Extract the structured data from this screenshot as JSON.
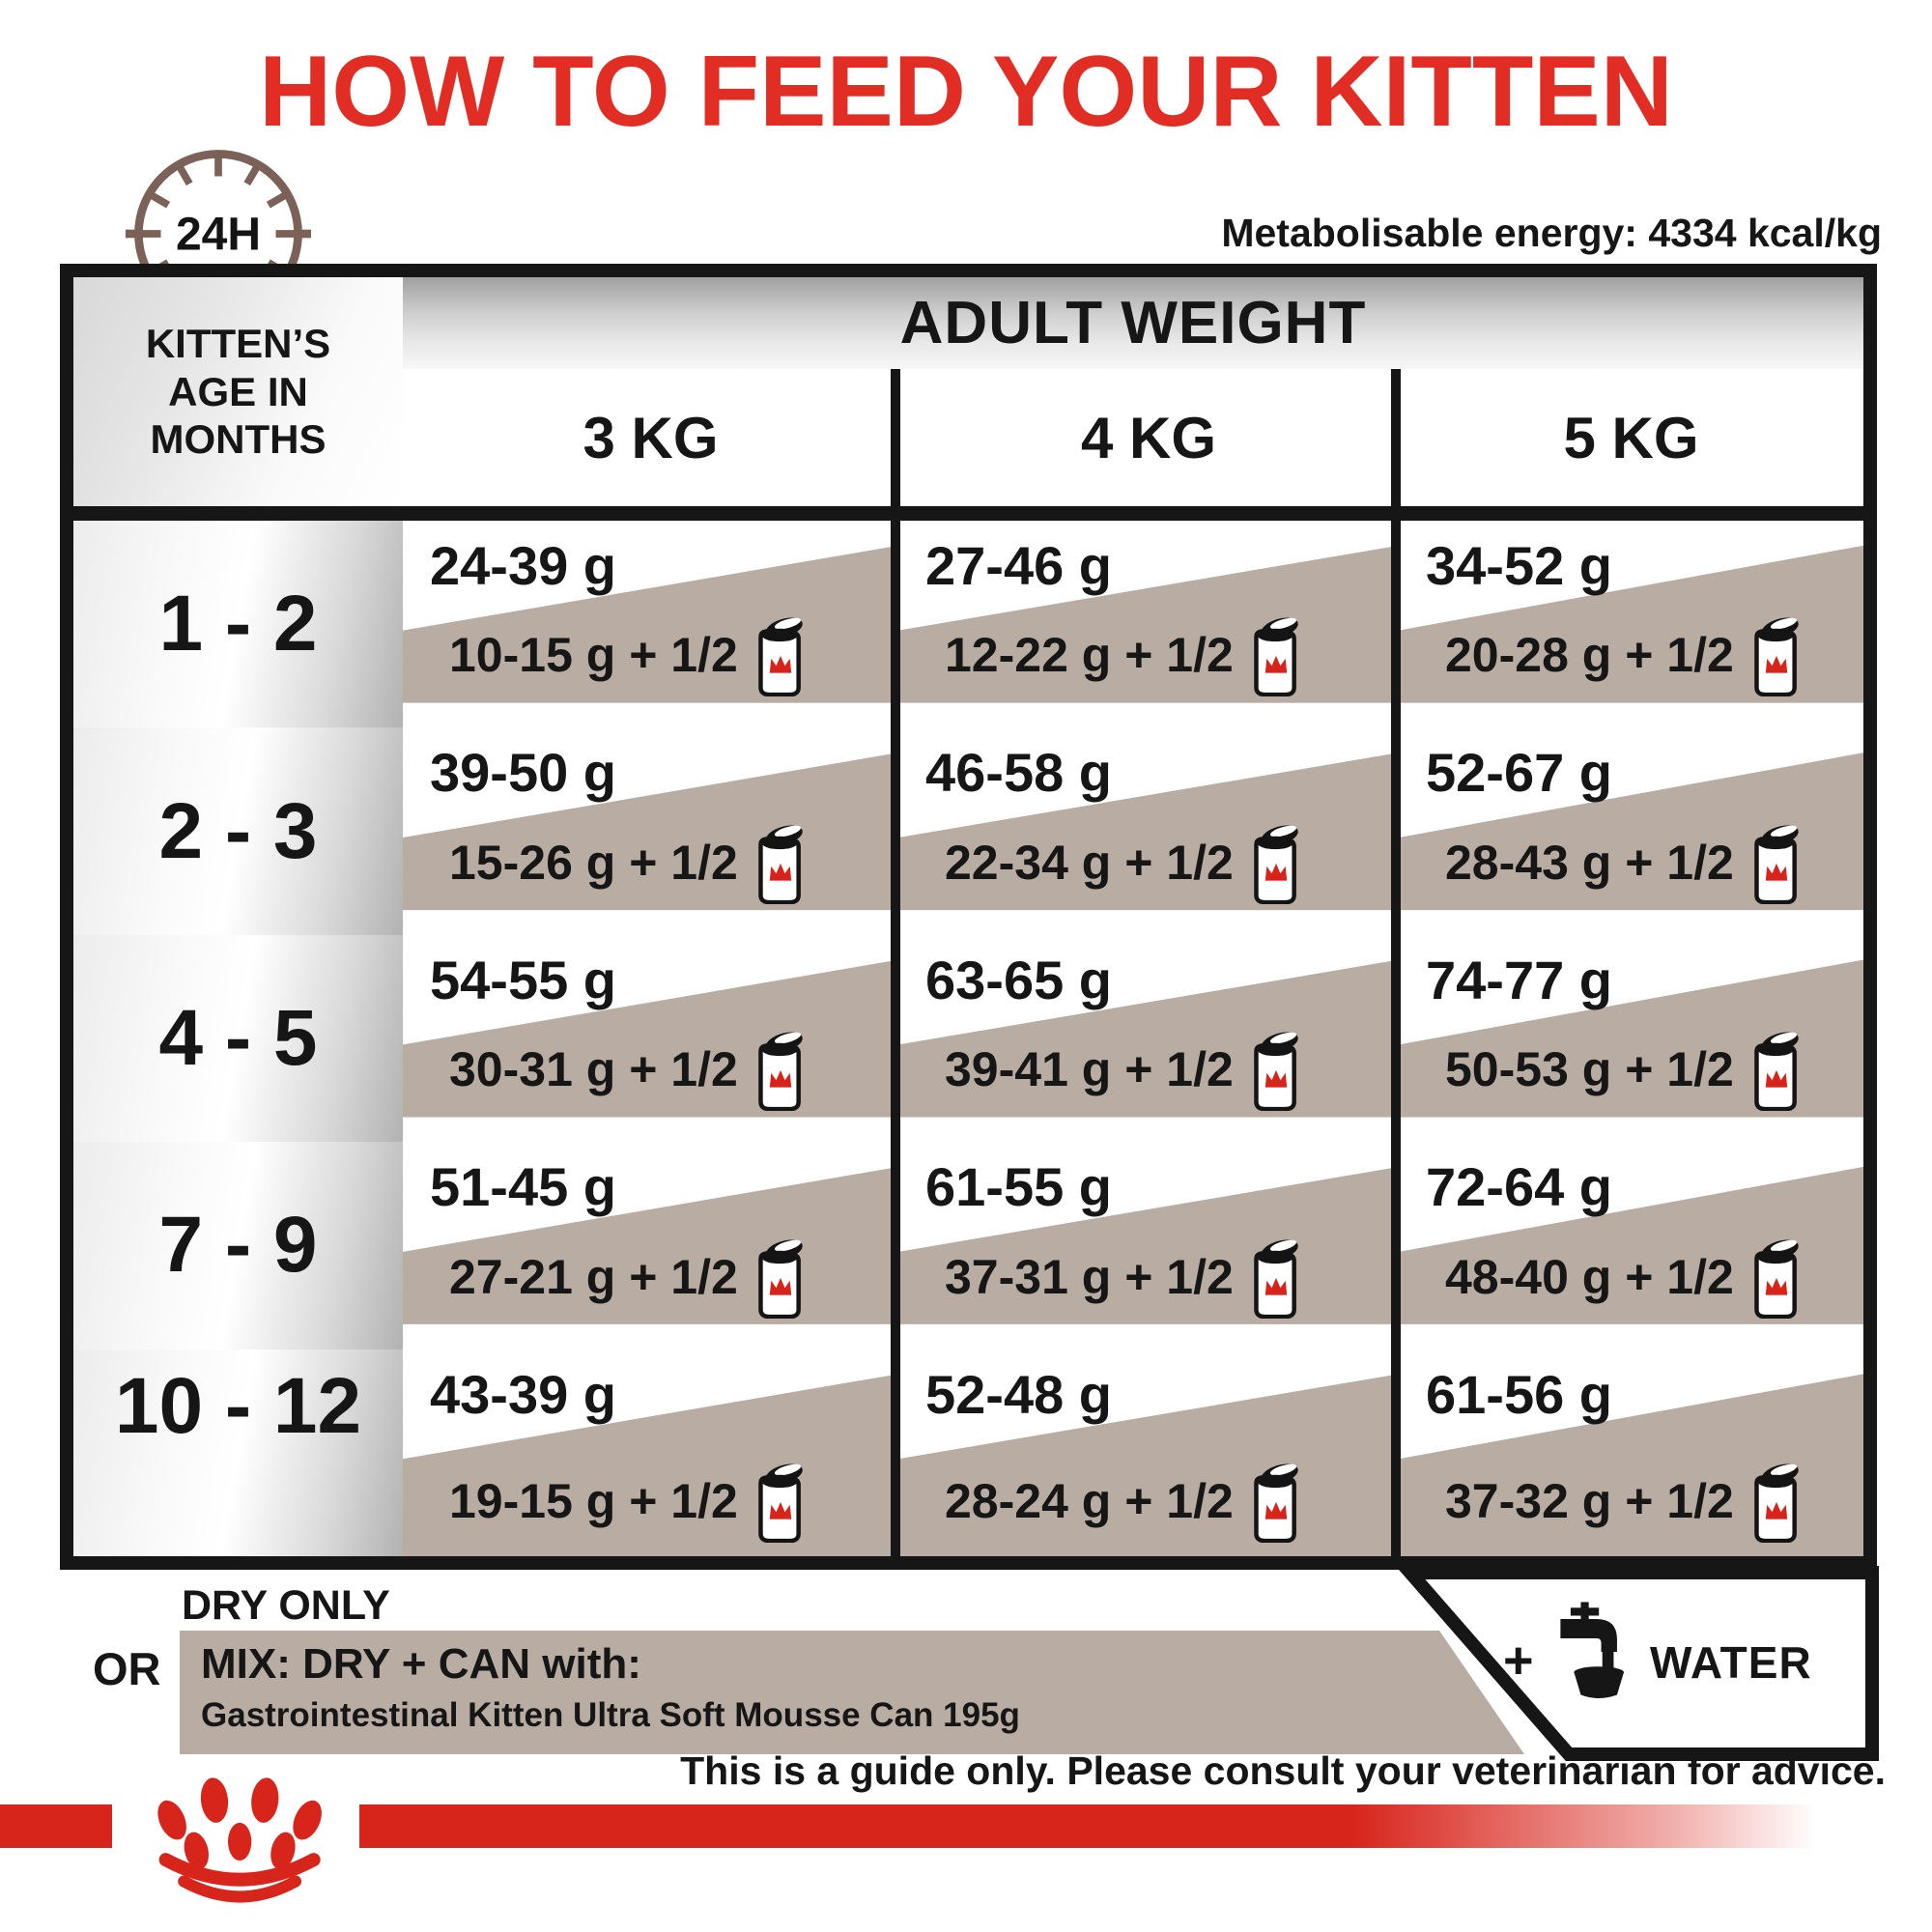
{
  "title": "HOW TO FEED YOUR KITTEN",
  "energy_note": "Metabolisable energy: 4334 kcal/kg",
  "clock_label": "24H",
  "table": {
    "age_header": "KITTEN’S AGE IN MONTHS",
    "weight_header": "ADULT WEIGHT",
    "weight_columns": [
      "3 KG",
      "4 KG",
      "5 KG"
    ],
    "rows": [
      {
        "age": "1 - 2",
        "cells": [
          {
            "dry": "24-39 g",
            "mix": "10-15 g + 1/2"
          },
          {
            "dry": "27-46 g",
            "mix": "12-22 g + 1/2"
          },
          {
            "dry": "34-52 g",
            "mix": "20-28 g + 1/2"
          }
        ]
      },
      {
        "age": "2 - 3",
        "cells": [
          {
            "dry": "39-50 g",
            "mix": "15-26 g + 1/2"
          },
          {
            "dry": "46-58 g",
            "mix": "22-34 g + 1/2"
          },
          {
            "dry": "52-67 g",
            "mix": "28-43 g + 1/2"
          }
        ]
      },
      {
        "age": "4 - 5",
        "cells": [
          {
            "dry": "54-55 g",
            "mix": "30-31 g + 1/2"
          },
          {
            "dry": "63-65 g",
            "mix": "39-41 g + 1/2"
          },
          {
            "dry": "74-77 g",
            "mix": "50-53 g + 1/2"
          }
        ]
      },
      {
        "age": "7 - 9",
        "cells": [
          {
            "dry": "51-45 g",
            "mix": "27-21 g + 1/2"
          },
          {
            "dry": "61-55 g",
            "mix": "37-31 g + 1/2"
          },
          {
            "dry": "72-64 g",
            "mix": "48-40 g + 1/2"
          }
        ]
      },
      {
        "age": "10 - 12",
        "cells": [
          {
            "dry": "43-39 g",
            "mix": "19-15 g + 1/2"
          },
          {
            "dry": "52-48 g",
            "mix": "28-24 g + 1/2"
          },
          {
            "dry": "61-56 g",
            "mix": "37-32 g + 1/2"
          }
        ]
      }
    ]
  },
  "legend": {
    "dry_only": "DRY ONLY",
    "or": "OR",
    "mix_title": "MIX: DRY + CAN with:",
    "mix_product": "Gastrointestinal Kitten Ultra Soft Mousse Can 195g",
    "water_plus": "+",
    "water": "WATER"
  },
  "footer": "This is a guide only. Please consult your veterinarian for advice.",
  "icons": {
    "clock": "24h-clock-icon",
    "can": "can-icon",
    "water_tap": "water-tap-icon",
    "paw_logo": "royal-canin-paw-logo"
  },
  "colors": {
    "brand_red": "#e12d23",
    "bar_red": "#d8251c",
    "beige": "#b9aca3",
    "clock_brown": "#7b6157",
    "ink": "#161616"
  }
}
